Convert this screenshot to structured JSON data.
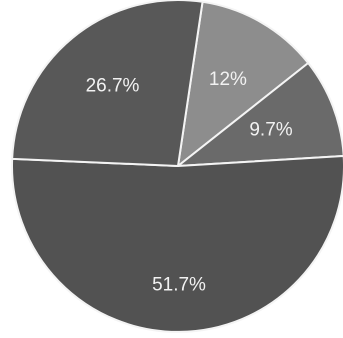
{
  "chart_data": {
    "type": "pie",
    "slices": [
      {
        "value": 12,
        "label": "12%",
        "color": "#8d8d8d"
      },
      {
        "value": 9.7,
        "label": "9.7%",
        "color": "#6a6a6a"
      },
      {
        "value": 51.7,
        "label": "51.7%",
        "color": "#525252"
      },
      {
        "value": 26.7,
        "label": "26.7%",
        "color": "#585858"
      }
    ],
    "legend": false,
    "grid": false
  }
}
